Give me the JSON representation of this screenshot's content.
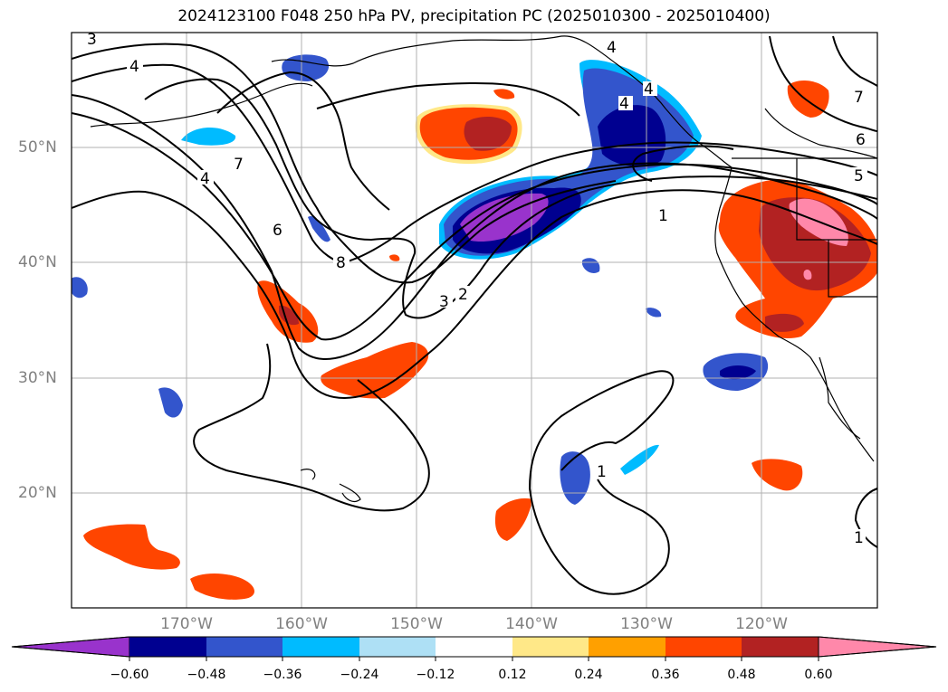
{
  "title": "2024123100 F048 250 hPa PV, precipitation PC (2025010300 - 2025010400)",
  "latitude_labels": [
    "50°N",
    "40°N",
    "30°N",
    "20°N"
  ],
  "longitude_labels": [
    "170°W",
    "160°W",
    "150°W",
    "140°W",
    "130°W",
    "120°W"
  ],
  "colorbar": {
    "ticks": [
      "−0.60",
      "−0.48",
      "−0.36",
      "−0.24",
      "−0.12",
      "0.12",
      "0.24",
      "0.36",
      "0.48",
      "0.60"
    ],
    "colors": [
      "#9933cc",
      "#000090",
      "#3355cc",
      "#00bbff",
      "#aee0f5",
      "#ffffff",
      "#ffe888",
      "#ffa000",
      "#ff4500",
      "#b22222",
      "#ff88aa"
    ]
  },
  "contour_labels": [
    "3",
    "4",
    "4",
    "7",
    "4",
    "6",
    "8",
    "1",
    "3",
    "2",
    "1",
    "4",
    "4",
    "7",
    "6",
    "5",
    "1"
  ]
}
